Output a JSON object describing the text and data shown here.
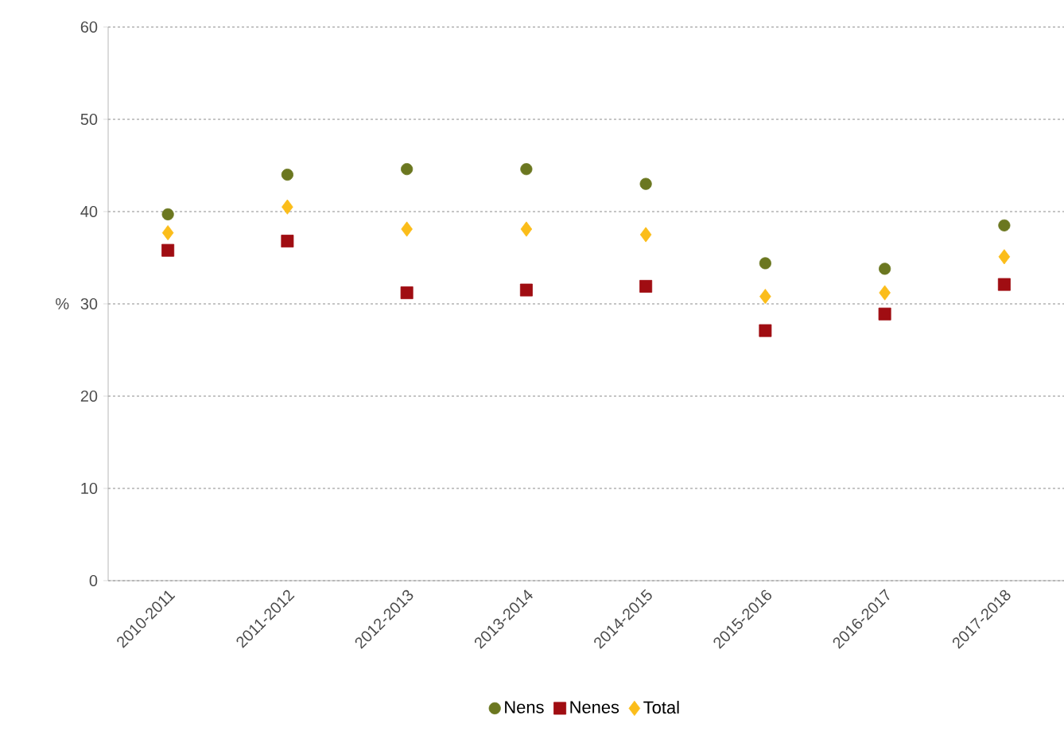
{
  "chart_data": {
    "type": "scatter",
    "ylabel": "%",
    "categories": [
      "2010-2011",
      "2011-2012",
      "2012-2013",
      "2013-2014",
      "2014-2015",
      "2015-2016",
      "2016-2017",
      "2017-2018"
    ],
    "series": [
      {
        "name": "Nens",
        "color": "#6b7720",
        "marker": "circle",
        "values": [
          39.7,
          44.0,
          44.6,
          44.6,
          43.0,
          34.4,
          33.8,
          38.5
        ]
      },
      {
        "name": "Nenes",
        "color": "#a00d12",
        "marker": "square",
        "values": [
          35.8,
          36.8,
          31.2,
          31.5,
          31.9,
          27.1,
          28.9,
          32.1
        ]
      },
      {
        "name": "Total",
        "color": "#fbbd1a",
        "marker": "diamond",
        "values": [
          37.7,
          40.5,
          38.1,
          38.1,
          37.5,
          30.8,
          31.2,
          35.1
        ]
      }
    ],
    "ylim": [
      0,
      60
    ],
    "yticks": [
      0,
      10,
      20,
      30,
      40,
      50,
      60
    ],
    "grid": "y",
    "legend": "bottom"
  }
}
